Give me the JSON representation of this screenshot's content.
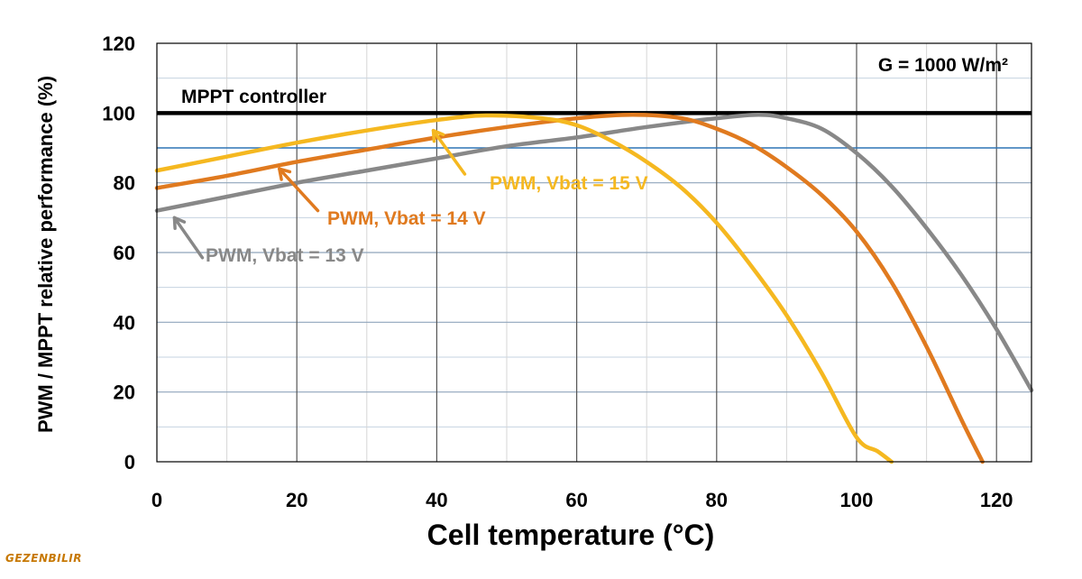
{
  "chart_data": {
    "type": "line",
    "xlabel": "Cell temperature (°C)",
    "ylabel": "PWM / MPPT relative performance (%)",
    "xlim": [
      0,
      125
    ],
    "ylim": [
      0,
      120
    ],
    "xticks": [
      0,
      20,
      40,
      60,
      80,
      100,
      120
    ],
    "yticks": [
      0,
      20,
      40,
      60,
      80,
      100,
      120
    ],
    "grid": true,
    "condition_label": "G = 1000 W/m²",
    "reference_lines": [
      {
        "name": "MPPT controller",
        "y": 100,
        "color": "#000000"
      },
      {
        "name": "",
        "y": 90,
        "color": "#2e75b6"
      }
    ],
    "series": [
      {
        "name": "PWM, Vbat = 15 V",
        "color": "#f5b820",
        "x": [
          0,
          10,
          20,
          30,
          40,
          47,
          55,
          60,
          65,
          70,
          75,
          80,
          85,
          90,
          95,
          100,
          103,
          105
        ],
        "y": [
          83.5,
          87.5,
          91.5,
          95,
          98,
          99.3,
          98.5,
          96.5,
          92,
          86,
          78.5,
          68.5,
          56,
          42,
          25.5,
          7,
          3,
          0
        ]
      },
      {
        "name": "PWM, Vbat = 14 V",
        "color": "#e07a1f",
        "x": [
          0,
          10,
          20,
          30,
          40,
          50,
          60,
          68,
          75,
          80,
          85,
          90,
          95,
          100,
          105,
          110,
          115,
          118
        ],
        "y": [
          78.5,
          82,
          86,
          89.5,
          93,
          96,
          98.5,
          99.5,
          98.5,
          95.5,
          91,
          84.5,
          76.5,
          66,
          51.5,
          33,
          12,
          0
        ]
      },
      {
        "name": "PWM, Vbat = 13 V",
        "color": "#888888",
        "x": [
          0,
          10,
          20,
          30,
          40,
          50,
          60,
          70,
          80,
          86,
          90,
          95,
          100,
          105,
          110,
          115,
          120,
          125
        ],
        "y": [
          72,
          76,
          80,
          83.5,
          87,
          90.5,
          93,
          96,
          98.5,
          99.5,
          98.5,
          95.5,
          88.5,
          79,
          67,
          53.5,
          38,
          20.5
        ]
      }
    ],
    "annotations": [
      {
        "text": "MPPT controller",
        "color": "#000000"
      },
      {
        "text": "PWM, Vbat = 15 V",
        "color": "#f5b820"
      },
      {
        "text": "PWM, Vbat = 14 V",
        "color": "#e07a1f"
      },
      {
        "text": "PWM, Vbat = 13 V",
        "color": "#888888"
      }
    ]
  },
  "watermark": "GEZENBILIR"
}
